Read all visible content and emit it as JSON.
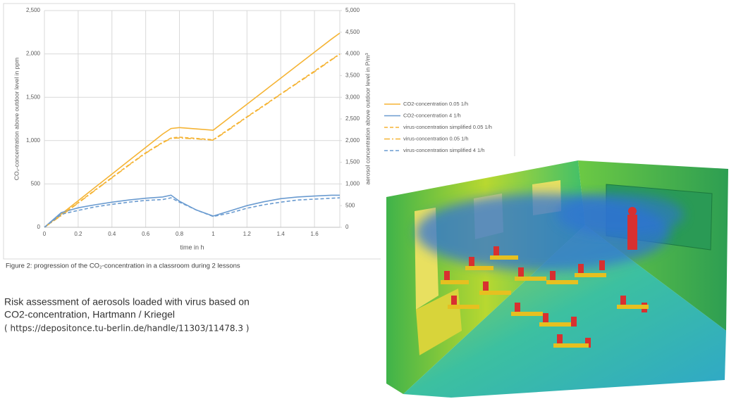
{
  "chart_data": {
    "type": "line",
    "x_label": "time in h",
    "y_label": "CO₂-concentration above outdoor level in ppm",
    "y2_label": "aerosol concentration above outdoor level in P/m³",
    "caption": "Figure 2: progression of the CO₂-concentration in a classroom during 2 lessons",
    "x": [
      0,
      0.1,
      0.2,
      0.3,
      0.4,
      0.5,
      0.6,
      0.7,
      0.75,
      0.8,
      0.9,
      1.0,
      1.1,
      1.2,
      1.3,
      1.4,
      1.5,
      1.6,
      1.7,
      1.75
    ],
    "xlim": [
      0,
      1.75
    ],
    "xticks": [
      0,
      0.2,
      0.4,
      0.6,
      0.8,
      1,
      1.2,
      1.4,
      1.6
    ],
    "ylim": [
      0,
      2500
    ],
    "yticks": [
      0,
      500,
      {
        "value": 1000,
        "label": "1,000"
      },
      {
        "value": 1500,
        "label": "1,500"
      },
      {
        "value": 2000,
        "label": "2,000"
      },
      {
        "value": 2500,
        "label": "2,500"
      }
    ],
    "y2lim": [
      0,
      5000
    ],
    "y2ticks": [
      0,
      500,
      {
        "value": 1000,
        "label": "1,000"
      },
      {
        "value": 1500,
        "label": "1,500"
      },
      {
        "value": 2000,
        "label": "2,000"
      },
      {
        "value": 2500,
        "label": "2,500"
      },
      {
        "value": 3000,
        "label": "3,000"
      },
      {
        "value": 3500,
        "label": "3,500"
      },
      {
        "value": 4000,
        "label": "4,000"
      },
      {
        "value": 4500,
        "label": "4,500"
      },
      {
        "value": 5000,
        "label": "5,000"
      }
    ],
    "grid": true,
    "series": [
      {
        "name": "CO2-concentration 0.05 1/h",
        "color": "#f5b435",
        "dash": "solid",
        "values": [
          0,
          153,
          307,
          460,
          614,
          768,
          921,
          1075,
          1140,
          1150,
          1135,
          1120,
          1270,
          1420,
          1570,
          1720,
          1870,
          2020,
          2170,
          2240
        ]
      },
      {
        "name": "CO2-concentration 4 1/h",
        "color": "#6a9bd0",
        "dash": "solid",
        "values": [
          0,
          170,
          225,
          260,
          290,
          315,
          335,
          350,
          370,
          300,
          200,
          130,
          190,
          250,
          295,
          330,
          350,
          360,
          370,
          370
        ]
      },
      {
        "name": "virus-concentration simplified 0.05 1/h",
        "color": "#f5b435",
        "dash": "dashed",
        "axis": "y2",
        "values": [
          0,
          280,
          570,
          860,
          1150,
          1440,
          1720,
          1960,
          2060,
          2080,
          2050,
          2020,
          2284,
          2548,
          2812,
          3076,
          3340,
          3604,
          3868,
          4000
        ]
      },
      {
        "name": "virus-concentration 0.05 1/h",
        "color": "#f5b435",
        "dash": "dashdot",
        "axis": "y2",
        "values": [
          0,
          270,
          560,
          850,
          1140,
          1430,
          1710,
          1950,
          2050,
          2060,
          2040,
          2010,
          2270,
          2540,
          2800,
          3070,
          3330,
          3590,
          3860,
          3990
        ]
      },
      {
        "name": "virus-concentration simplified 4 1/h",
        "color": "#6a9bd0",
        "dash": "dashed",
        "axis": "y2",
        "values": [
          0,
          300,
          390,
          470,
          530,
          580,
          620,
          640,
          680,
          580,
          400,
          250,
          330,
          440,
          520,
          580,
          630,
          650,
          670,
          680
        ]
      }
    ]
  },
  "text": {
    "line1": "Risk assessment of aerosols loaded with virus based on",
    "line2": "CO2-concentration, Hartmann / Kriegel",
    "url": "( https://depositonce.tu-berlin.de/handle/11303/11478.3 )"
  }
}
